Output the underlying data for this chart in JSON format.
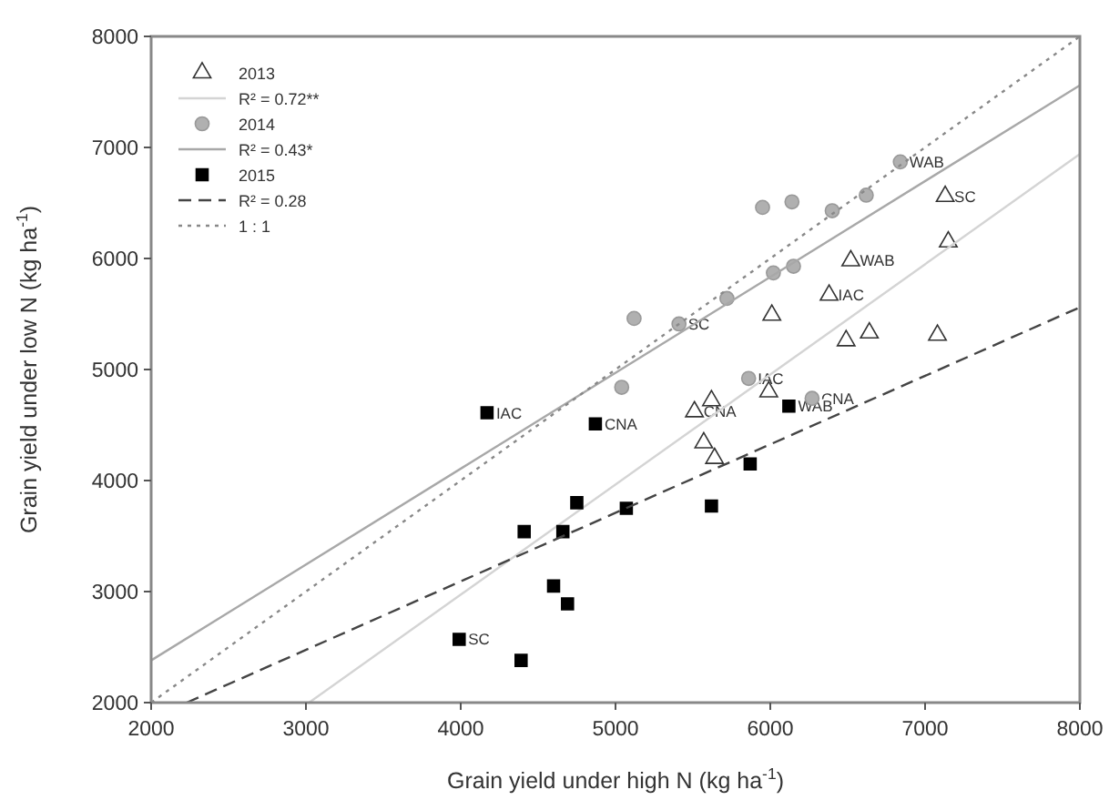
{
  "chart_data": {
    "type": "scatter",
    "xlabel": "Grain yield under high N (kg ha$^{-1}$)",
    "ylabel": "Grain yield under low N (kg ha$^{-1}$)",
    "xlim": [
      2000,
      8000
    ],
    "ylim": [
      2000,
      8000
    ],
    "xticks": [
      2000,
      3000,
      4000,
      5000,
      6000,
      7000,
      8000
    ],
    "yticks": [
      2000,
      3000,
      4000,
      5000,
      6000,
      7000,
      8000
    ],
    "grid": false,
    "legend": "top left",
    "series": [
      {
        "name": "2013",
        "marker": "triangle",
        "color": "#333333",
        "x": [
          7130,
          7150,
          6520,
          6380,
          6010,
          6490,
          6640,
          7080,
          5620,
          5510,
          5990,
          5570,
          5640
        ],
        "values": [
          6560,
          6150,
          5980,
          5670,
          5490,
          5260,
          5330,
          5310,
          4720,
          4620,
          4800,
          4340,
          4200
        ]
      },
      {
        "name": "R² = 0.72**",
        "type": "line",
        "line_style": "solid",
        "color": "#d4d4d4",
        "x": [
          3020,
          8000
        ],
        "values": [
          2000,
          6940
        ]
      },
      {
        "name": "2014",
        "marker": "circle",
        "color": "#b0b0b0",
        "x": [
          6840,
          5950,
          6140,
          6400,
          6620,
          6020,
          6150,
          5720,
          5120,
          5410,
          5040,
          5860,
          6270
        ],
        "values": [
          6870,
          6460,
          6510,
          6430,
          6570,
          5870,
          5930,
          5640,
          5460,
          5410,
          4840,
          4920,
          4740
        ]
      },
      {
        "name": "R² = 0.43*",
        "type": "line",
        "line_style": "solid",
        "color": "#a8a8a8",
        "x": [
          2000,
          8000
        ],
        "values": [
          2380,
          7560
        ]
      },
      {
        "name": "2015",
        "marker": "square",
        "color": "#000000",
        "x": [
          4170,
          4870,
          4750,
          4410,
          4660,
          4600,
          4690,
          3990,
          4390,
          6120,
          5870,
          5620,
          5070
        ],
        "values": [
          4610,
          4510,
          3800,
          3540,
          3540,
          3050,
          2890,
          2570,
          2380,
          4670,
          4150,
          3770,
          3750
        ]
      },
      {
        "name": "R² = 0.28",
        "type": "line",
        "line_style": "dashed",
        "color": "#444444",
        "x": [
          2230,
          8000
        ],
        "values": [
          2000,
          5560
        ]
      },
      {
        "name": "1 : 1",
        "type": "line",
        "line_style": "dotted",
        "color": "#888888",
        "x": [
          2000,
          8000
        ],
        "values": [
          2000,
          8000
        ]
      }
    ],
    "annotations": [
      {
        "text": "SC",
        "x": 7130,
        "y": 6560
      },
      {
        "text": "WAB",
        "x": 6520,
        "y": 5980
      },
      {
        "text": "IAC",
        "x": 6380,
        "y": 5670
      },
      {
        "text": "CNA",
        "x": 5510,
        "y": 4620
      },
      {
        "text": "WAB",
        "x": 6840,
        "y": 6870
      },
      {
        "text": "SC",
        "x": 5410,
        "y": 5410
      },
      {
        "text": "IAC",
        "x": 5860,
        "y": 4920
      },
      {
        "text": "CNA",
        "x": 6270,
        "y": 4740
      },
      {
        "text": "IAC",
        "x": 4170,
        "y": 4610
      },
      {
        "text": "CNA",
        "x": 4870,
        "y": 4510
      },
      {
        "text": "SC",
        "x": 3990,
        "y": 2570
      },
      {
        "text": "WAB",
        "x": 6120,
        "y": 4670
      }
    ]
  }
}
